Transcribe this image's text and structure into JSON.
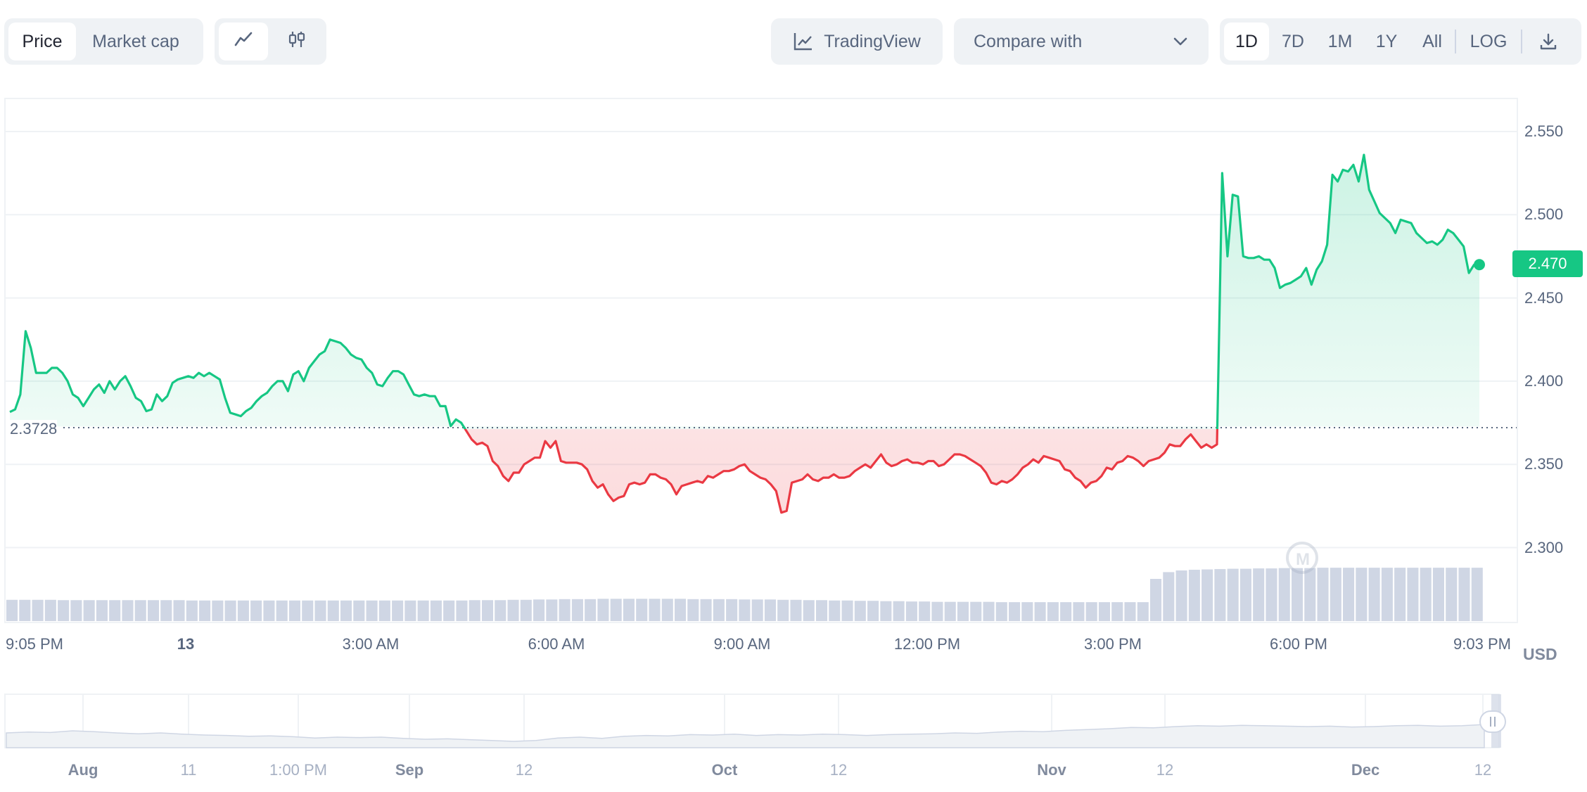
{
  "toolbar": {
    "view_tabs": [
      "Price",
      "Market cap"
    ],
    "active_view": "Price",
    "chart_types": [
      {
        "icon": "line-chart-icon",
        "active": true
      },
      {
        "icon": "candlestick-icon",
        "active": false
      }
    ],
    "tradingview_label": "TradingView",
    "compare_label": "Compare with",
    "ranges": [
      "1D",
      "7D",
      "1M",
      "1Y",
      "All"
    ],
    "active_range": "1D",
    "log_label": "LOG",
    "download_icon": "download-icon"
  },
  "chart_data": {
    "type": "line",
    "baseline_label": "2.3728",
    "current_price_label": "2.470",
    "currency_label": "USD",
    "up_color": "#16c784",
    "down_color": "#ea3943",
    "y_ticks": [
      "2.550",
      "2.500",
      "2.450",
      "2.400",
      "2.350",
      "2.300"
    ],
    "ylim": [
      2.26,
      2.57
    ],
    "x_ticks": [
      {
        "label": "9:05 PM",
        "bold": false
      },
      {
        "label": "13",
        "bold": true
      },
      {
        "label": "3:00 AM",
        "bold": false
      },
      {
        "label": "6:00 AM",
        "bold": false
      },
      {
        "label": "9:00 AM",
        "bold": false
      },
      {
        "label": "12:00 PM",
        "bold": false
      },
      {
        "label": "3:00 PM",
        "bold": false
      },
      {
        "label": "6:00 PM",
        "bold": false
      },
      {
        "label": "9:03 PM",
        "bold": false
      }
    ],
    "series": [
      {
        "values": [
          2.3815,
          2.383,
          2.392,
          2.43,
          2.42,
          2.405,
          2.405,
          2.405,
          2.408,
          2.408,
          2.405,
          2.4,
          2.392,
          2.39,
          2.385,
          2.39,
          2.395,
          2.398,
          2.393,
          2.4,
          2.395,
          2.4,
          2.403,
          2.397,
          2.39,
          2.388,
          2.382,
          2.383,
          2.392,
          2.388,
          2.391,
          2.399,
          2.401,
          2.402,
          2.403,
          2.402,
          2.405,
          2.403,
          2.405,
          2.403,
          2.401,
          2.39,
          2.381,
          2.38,
          2.379,
          2.382,
          2.384,
          2.388,
          2.391,
          2.393,
          2.397,
          2.4,
          2.4,
          2.394,
          2.404,
          2.406,
          2.4,
          2.408,
          2.412,
          2.416,
          2.418,
          2.425,
          2.424,
          2.423,
          2.42,
          2.416,
          2.414,
          2.413,
          2.408,
          2.405,
          2.398,
          2.397,
          2.402,
          2.406,
          2.406,
          2.404,
          2.398,
          2.392,
          2.391,
          2.392,
          2.391,
          2.391,
          2.385,
          2.385,
          2.373,
          2.377,
          2.375,
          2.37,
          2.365,
          2.362,
          2.363,
          2.361,
          2.352,
          2.349,
          2.343,
          2.34,
          2.345,
          2.345,
          2.35,
          2.352,
          2.354,
          2.354,
          2.364,
          2.36,
          2.364,
          2.352,
          2.351,
          2.351,
          2.351,
          2.35,
          2.347,
          2.34,
          2.336,
          2.338,
          2.332,
          2.328,
          2.33,
          2.331,
          2.338,
          2.339,
          2.338,
          2.339,
          2.344,
          2.344,
          2.342,
          2.341,
          2.338,
          2.332,
          2.337,
          2.338,
          2.339,
          2.34,
          2.339,
          2.343,
          2.342,
          2.344,
          2.346,
          2.346,
          2.347,
          2.349,
          2.35,
          2.346,
          2.344,
          2.342,
          2.341,
          2.338,
          2.334,
          2.321,
          2.322,
          2.339,
          2.34,
          2.341,
          2.344,
          2.341,
          2.34,
          2.342,
          2.342,
          2.344,
          2.342,
          2.342,
          2.343,
          2.346,
          2.348,
          2.35,
          2.348,
          2.352,
          2.356,
          2.351,
          2.349,
          2.35,
          2.352,
          2.353,
          2.351,
          2.351,
          2.35,
          2.352,
          2.352,
          2.349,
          2.35,
          2.353,
          2.356,
          2.356,
          2.355,
          2.353,
          2.351,
          2.349,
          2.345,
          2.339,
          2.338,
          2.34,
          2.339,
          2.341,
          2.344,
          2.348,
          2.35,
          2.353,
          2.351,
          2.355,
          2.354,
          2.353,
          2.352,
          2.347,
          2.346,
          2.342,
          2.34,
          2.336,
          2.339,
          2.34,
          2.343,
          2.348,
          2.347,
          2.351,
          2.352,
          2.355,
          2.354,
          2.352,
          2.349,
          2.352,
          2.353,
          2.354,
          2.357,
          2.362,
          2.361,
          2.361,
          2.365,
          2.368,
          2.364,
          2.36,
          2.362,
          2.36,
          2.362,
          2.525,
          2.475,
          2.512,
          2.511,
          2.475,
          2.474,
          2.474,
          2.475,
          2.473,
          2.473,
          2.468,
          2.456,
          2.458,
          2.459,
          2.461,
          2.463,
          2.468,
          2.458,
          2.467,
          2.472,
          2.482,
          2.524,
          2.52,
          2.527,
          2.526,
          2.53,
          2.52,
          2.536,
          2.515,
          2.508,
          2.501,
          2.498,
          2.495,
          2.489,
          2.497,
          2.496,
          2.495,
          2.489,
          2.486,
          2.483,
          2.484,
          2.482,
          2.485,
          2.491,
          2.489,
          2.485,
          2.481,
          2.465,
          2.47,
          2.47
        ]
      }
    ],
    "volume": {
      "values": [
        0.63,
        0.63,
        0.63,
        0.63,
        0.62,
        0.62,
        0.62,
        0.62,
        0.62,
        0.62,
        0.62,
        0.62,
        0.62,
        0.62,
        0.61,
        0.61,
        0.61,
        0.61,
        0.61,
        0.61,
        0.61,
        0.61,
        0.61,
        0.61,
        0.61,
        0.61,
        0.61,
        0.61,
        0.61,
        0.61,
        0.61,
        0.61,
        0.61,
        0.61,
        0.61,
        0.61,
        0.62,
        0.62,
        0.62,
        0.63,
        0.63,
        0.64,
        0.64,
        0.65,
        0.65,
        0.65,
        0.66,
        0.66,
        0.66,
        0.66,
        0.66,
        0.66,
        0.66,
        0.65,
        0.65,
        0.65,
        0.65,
        0.64,
        0.64,
        0.64,
        0.63,
        0.63,
        0.62,
        0.62,
        0.61,
        0.61,
        0.6,
        0.6,
        0.59,
        0.59,
        0.58,
        0.58,
        0.57,
        0.57,
        0.57,
        0.57,
        0.57,
        0.56,
        0.56,
        0.56,
        0.56,
        0.56,
        0.56,
        0.56,
        0.56,
        0.56,
        0.56,
        0.56,
        0.56,
        1.25,
        1.45,
        1.5,
        1.52,
        1.53,
        1.54,
        1.55,
        1.55,
        1.56,
        1.56,
        1.57,
        1.57,
        1.57,
        1.58,
        1.58,
        1.58,
        1.58,
        1.58,
        1.58,
        1.58,
        1.58,
        1.58,
        1.58,
        1.58,
        1.58,
        1.58
      ]
    },
    "navigator_ticks": [
      {
        "label": "Aug",
        "bold": true
      },
      {
        "label": "11",
        "bold": false
      },
      {
        "label": "1:00 PM",
        "bold": false
      },
      {
        "label": "Sep",
        "bold": true
      },
      {
        "label": "12",
        "bold": false
      },
      {
        "label": "Oct",
        "bold": true
      },
      {
        "label": "12",
        "bold": false
      },
      {
        "label": "Nov",
        "bold": true
      },
      {
        "label": "12",
        "bold": false
      },
      {
        "label": "Dec",
        "bold": true
      },
      {
        "label": "12",
        "bold": false
      }
    ],
    "navigator_values": [
      0.3,
      0.32,
      0.31,
      0.35,
      0.33,
      0.3,
      0.28,
      0.3,
      0.27,
      0.25,
      0.24,
      0.22,
      0.23,
      0.21,
      0.18,
      0.2,
      0.19,
      0.2,
      0.17,
      0.15,
      0.16,
      0.14,
      0.12,
      0.1,
      0.12,
      0.18,
      0.2,
      0.17,
      0.22,
      0.24,
      0.23,
      0.26,
      0.25,
      0.27,
      0.24,
      0.26,
      0.25,
      0.27,
      0.26,
      0.24,
      0.26,
      0.27,
      0.28,
      0.3,
      0.29,
      0.32,
      0.34,
      0.33,
      0.36,
      0.38,
      0.4,
      0.43,
      0.42,
      0.45,
      0.47,
      0.46,
      0.48,
      0.47,
      0.46,
      0.45,
      0.46,
      0.44,
      0.45,
      0.47,
      0.48,
      0.46,
      0.47,
      0.5
    ]
  }
}
